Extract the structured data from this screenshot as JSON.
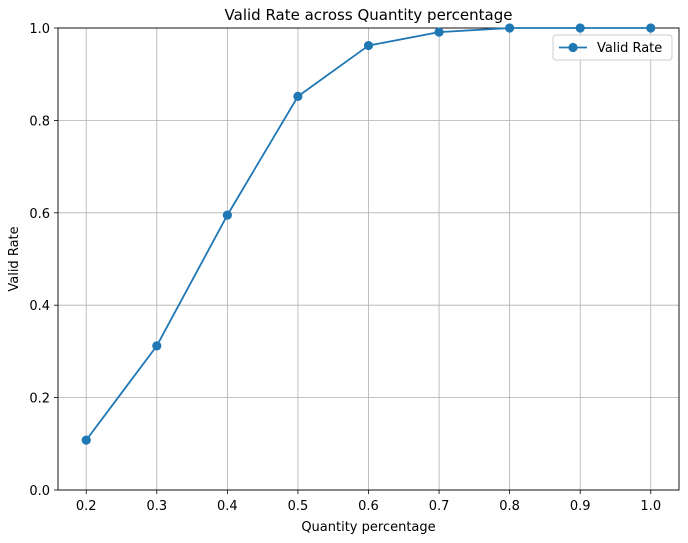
{
  "chart_data": {
    "type": "line",
    "title": "Valid Rate across Quantity percentage",
    "xlabel": "Quantity percentage",
    "ylabel": "Valid Rate",
    "x": [
      0.2,
      0.3,
      0.4,
      0.5,
      0.6,
      0.7,
      0.8,
      0.9,
      1.0
    ],
    "series": [
      {
        "name": "Valid Rate",
        "values": [
          0.108,
          0.312,
          0.595,
          0.852,
          0.962,
          0.991,
          1.0,
          1.0,
          1.0
        ],
        "color": "#1f77b4",
        "marker": "circle"
      }
    ],
    "xticks": [
      "0.2",
      "0.3",
      "0.4",
      "0.5",
      "0.6",
      "0.7",
      "0.8",
      "0.9",
      "1.0"
    ],
    "yticks": [
      "0.0",
      "0.2",
      "0.4",
      "0.6",
      "0.8",
      "1.0"
    ],
    "ylim": [
      0.0,
      1.0
    ],
    "grid": true,
    "legend_position": "top-right"
  }
}
